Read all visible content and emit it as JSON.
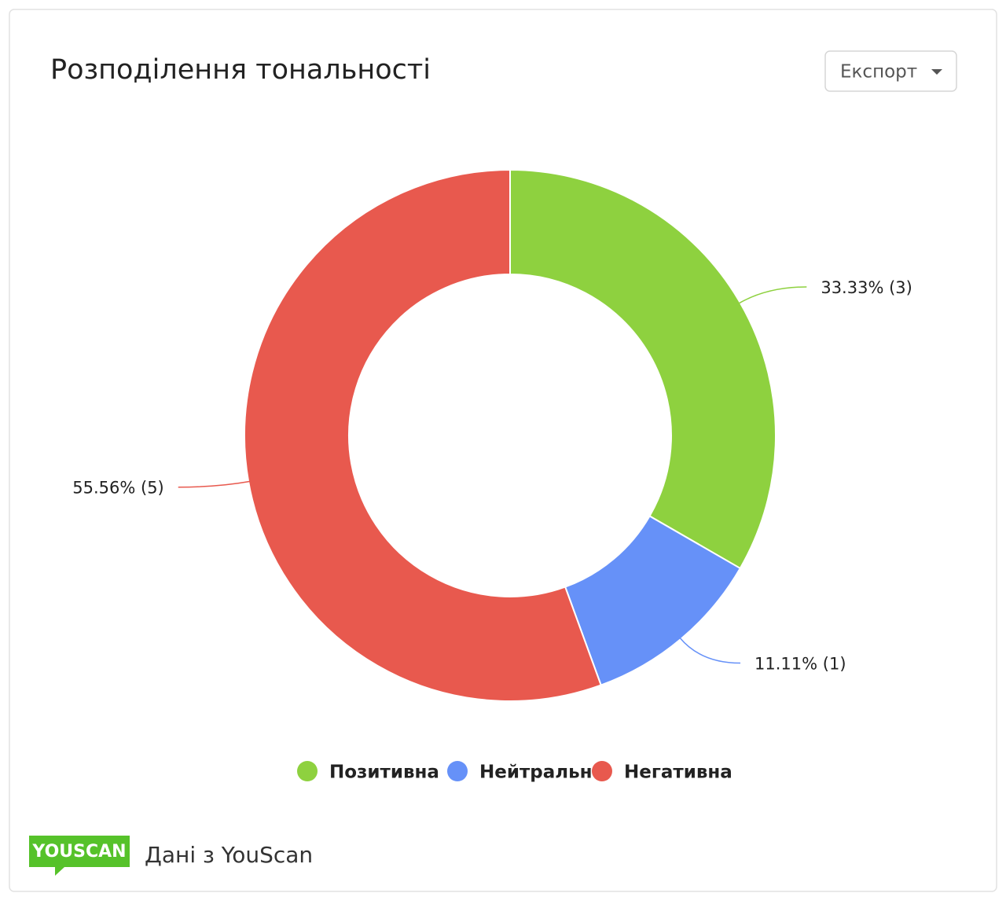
{
  "chart_data": {
    "type": "pie",
    "title": "Розподілення тональності",
    "categories": [
      "Позитивна",
      "Нейтральн",
      "Негативна"
    ],
    "values": [
      33.33,
      11.11,
      55.56
    ],
    "value_labels": [
      "33.33% (3)",
      "11.11% (1)",
      "55.56% (5)"
    ],
    "colors": [
      "#8ed13f",
      "#6691f8",
      "#e8594e"
    ],
    "donut": true
  },
  "export_button": "Експорт",
  "footer": {
    "logo": "YOUSCAN",
    "text": "Дані з YouScan"
  }
}
